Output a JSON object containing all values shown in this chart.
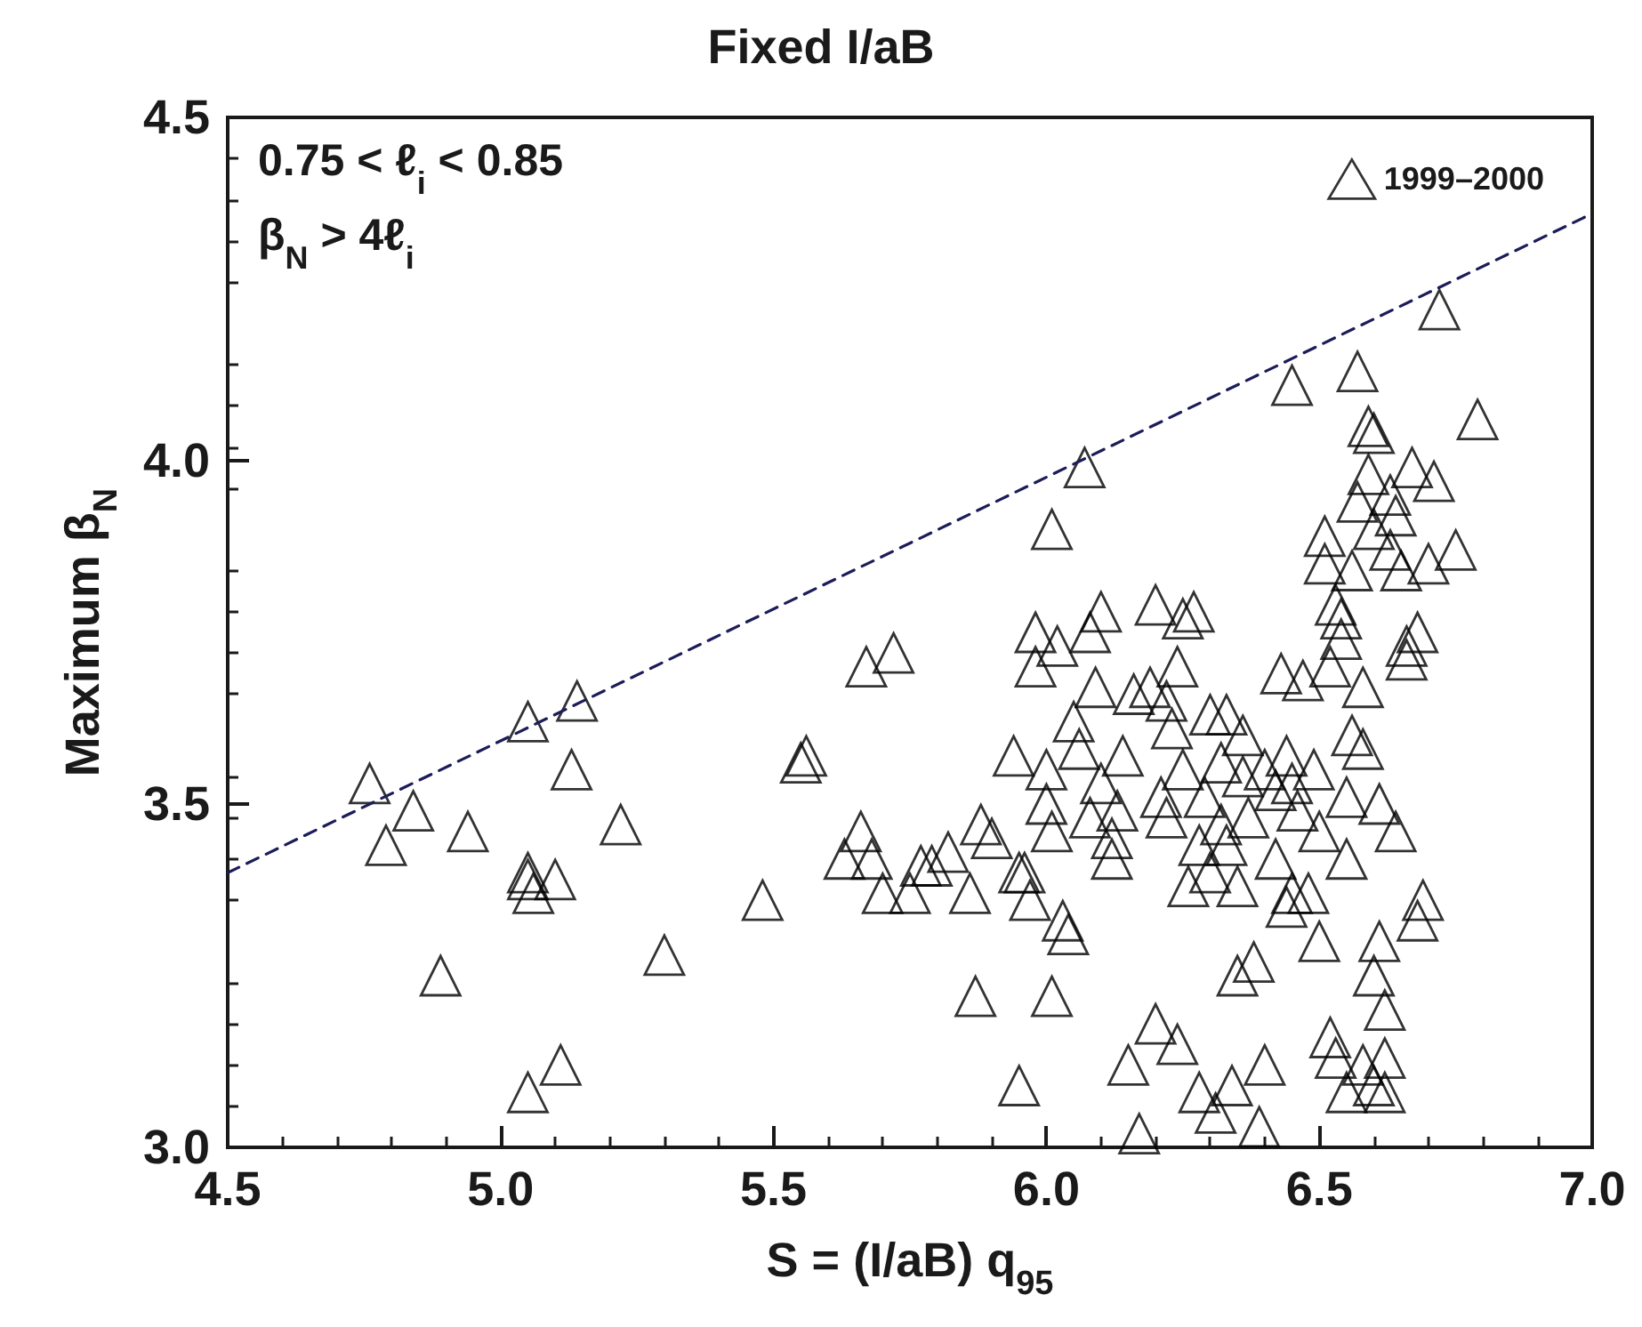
{
  "chart_data": {
    "type": "scatter",
    "title": "Fixed I/aB",
    "xlabel": "S = (I/aB) q$_{95}$",
    "ylabel": "Maximum β$_{N}$",
    "annotations": [
      "0.75 < ℓ$_{i}$ < 0.85",
      "β$_{N}$ > 4ℓ$_{i}$"
    ],
    "xlim": [
      4.5,
      7.0
    ],
    "xticks": [
      4.5,
      {
        "value": 5,
        "label": "5.0"
      },
      5.5,
      {
        "value": 6,
        "label": "6.0"
      },
      6.5,
      {
        "value": 7,
        "label": "7.0"
      }
    ],
    "ylim": [
      3.0,
      4.5
    ],
    "yticks": [
      {
        "value": 3,
        "label": "3.0"
      },
      3.5,
      {
        "value": 4,
        "label": "4.0"
      },
      4.5
    ],
    "grid": false,
    "legend": "top right",
    "series": [
      {
        "name": "1999–2000",
        "marker": "triangle",
        "color": "#000000",
        "x": [
          4.76,
          4.79,
          4.84,
          4.89,
          4.94,
          5.05,
          5.05,
          5.05,
          5.06,
          5.05,
          5.1,
          5.11,
          5.13,
          5.14,
          5.22,
          5.3,
          5.48,
          5.55,
          5.56,
          5.63,
          5.66,
          5.67,
          5.68,
          5.7,
          5.72,
          5.75,
          5.77,
          5.79,
          5.82,
          5.86,
          5.87,
          5.88,
          5.9,
          5.94,
          5.95,
          5.96,
          5.95,
          5.97,
          5.98,
          5.98,
          6.0,
          6.0,
          6.01,
          6.01,
          6.01,
          6.02,
          6.03,
          6.04,
          6.05,
          6.06,
          6.07,
          6.08,
          6.08,
          6.09,
          6.1,
          6.1,
          6.12,
          6.12,
          6.13,
          6.14,
          6.15,
          6.16,
          6.17,
          6.19,
          6.2,
          6.2,
          6.21,
          6.22,
          6.22,
          6.23,
          6.24,
          6.24,
          6.25,
          6.25,
          6.26,
          6.27,
          6.28,
          6.28,
          6.29,
          6.3,
          6.3,
          6.31,
          6.32,
          6.32,
          6.33,
          6.33,
          6.34,
          6.35,
          6.35,
          6.36,
          6.36,
          6.37,
          6.38,
          6.39,
          6.4,
          6.4,
          6.42,
          6.42,
          6.43,
          6.44,
          6.44,
          6.45,
          6.45,
          6.45,
          6.46,
          6.47,
          6.48,
          6.49,
          6.5,
          6.5,
          6.51,
          6.51,
          6.52,
          6.52,
          6.53,
          6.53,
          6.54,
          6.54,
          6.55,
          6.55,
          6.55,
          6.56,
          6.56,
          6.57,
          6.57,
          6.58,
          6.58,
          6.59,
          6.59,
          6.6,
          6.6,
          6.6,
          6.61,
          6.61,
          6.62,
          6.62,
          6.62,
          6.63,
          6.63,
          6.64,
          6.64,
          6.65,
          6.66,
          6.66,
          6.67,
          6.68,
          6.68,
          6.69,
          6.7,
          6.71,
          6.72,
          6.75,
          6.79,
          6.58,
          6.6
        ],
        "values": [
          3.53,
          3.44,
          3.49,
          3.25,
          3.46,
          3.62,
          3.4,
          3.39,
          3.37,
          3.08,
          3.39,
          3.12,
          3.55,
          3.65,
          3.47,
          3.28,
          3.36,
          3.56,
          3.57,
          3.42,
          3.46,
          3.7,
          3.42,
          3.37,
          3.72,
          3.37,
          3.41,
          3.41,
          3.43,
          3.37,
          3.22,
          3.47,
          3.45,
          3.57,
          3.4,
          3.4,
          3.09,
          3.36,
          3.7,
          3.75,
          3.5,
          3.55,
          3.9,
          3.46,
          3.22,
          3.73,
          3.33,
          3.31,
          3.62,
          3.58,
          3.99,
          3.48,
          3.75,
          3.67,
          3.53,
          3.78,
          3.45,
          3.42,
          3.49,
          3.57,
          3.12,
          3.66,
          3.02,
          3.67,
          3.18,
          3.79,
          3.51,
          3.48,
          3.65,
          3.61,
          3.7,
          3.15,
          3.55,
          3.77,
          3.38,
          3.78,
          3.08,
          3.44,
          3.51,
          3.63,
          3.4,
          3.05,
          3.56,
          3.47,
          3.44,
          3.63,
          3.09,
          3.38,
          3.25,
          3.54,
          3.6,
          3.48,
          3.27,
          3.03,
          3.12,
          3.55,
          3.52,
          3.42,
          3.69,
          3.57,
          3.35,
          3.37,
          3.53,
          4.11,
          3.49,
          3.68,
          3.37,
          3.55,
          3.46,
          3.3,
          3.89,
          3.85,
          3.7,
          3.16,
          3.13,
          3.79,
          3.77,
          3.74,
          3.51,
          3.42,
          3.08,
          3.6,
          3.84,
          4.13,
          3.94,
          3.58,
          3.67,
          4.05,
          3.98,
          4.04,
          3.9,
          3.25,
          3.3,
          3.5,
          3.13,
          3.2,
          3.08,
          3.87,
          3.95,
          3.46,
          3.92,
          3.84,
          3.73,
          3.71,
          3.99,
          3.75,
          3.33,
          3.36,
          3.85,
          3.97,
          4.22,
          3.87,
          4.06,
          3.12,
          3.09
        ]
      },
      {
        "type": "line",
        "marker": "none",
        "line_style": "dashed",
        "color": "#1c1c5a",
        "x": [
          4.5,
          7.0
        ],
        "values": [
          3.4,
          4.36
        ]
      }
    ]
  }
}
